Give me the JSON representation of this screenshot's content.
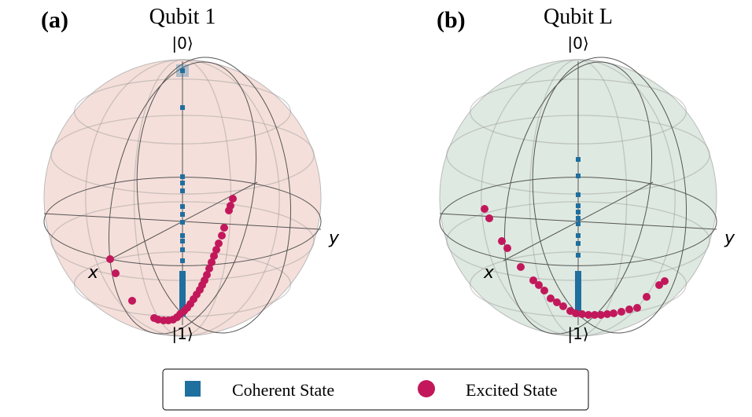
{
  "panels": [
    {
      "tag": "(a)",
      "title": "Qubit 1",
      "ket0": "|0⟩",
      "ket1": "|1⟩",
      "x_label": "x",
      "y_label": "y"
    },
    {
      "tag": "(b)",
      "title": "Qubit L",
      "ket0": "|0⟩",
      "ket1": "|1⟩",
      "x_label": "x",
      "y_label": "y"
    }
  ],
  "legend": [
    "Coherent State",
    "Excited State"
  ]
}
